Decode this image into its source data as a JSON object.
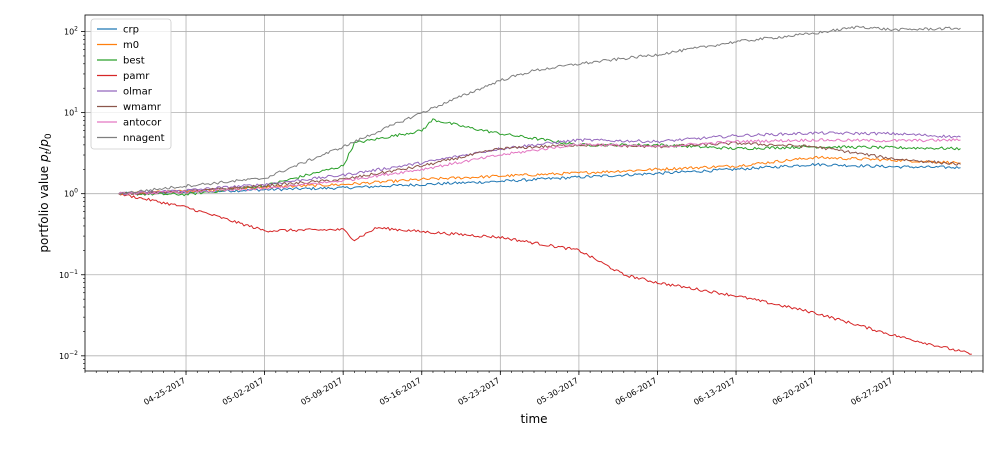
{
  "chart_data": {
    "type": "line",
    "title": "",
    "xlabel": "time",
    "ylabel": "portfolio value p_t/p_0",
    "ylabel_parts": {
      "main": "portfolio value ",
      "p": "p",
      "t": "t",
      "slash": "/",
      "p0": "p",
      "zero": "0"
    },
    "y_scale": "log",
    "ylim": [
      0.0065,
      160
    ],
    "xlim": [
      "2017-04-16",
      "2017-07-05"
    ],
    "grid": true,
    "legend_position": "top-left",
    "x_ticks": [
      {
        "label": "04-25-2017",
        "date": "2017-04-25"
      },
      {
        "label": "05-02-2017",
        "date": "2017-05-02"
      },
      {
        "label": "05-09-2017",
        "date": "2017-05-09"
      },
      {
        "label": "05-16-2017",
        "date": "2017-05-16"
      },
      {
        "label": "05-23-2017",
        "date": "2017-05-23"
      },
      {
        "label": "05-30-2017",
        "date": "2017-05-30"
      },
      {
        "label": "06-06-2017",
        "date": "2017-06-06"
      },
      {
        "label": "06-13-2017",
        "date": "2017-06-13"
      },
      {
        "label": "06-20-2017",
        "date": "2017-06-20"
      },
      {
        "label": "06-27-2017",
        "date": "2017-06-27"
      }
    ],
    "y_ticks": [
      {
        "value": 0.01,
        "base": "10",
        "exp": "−2"
      },
      {
        "value": 0.1,
        "base": "10",
        "exp": "−1"
      },
      {
        "value": 1,
        "base": "10",
        "exp": "0"
      },
      {
        "value": 10,
        "base": "10",
        "exp": "1"
      },
      {
        "value": 100,
        "base": "10",
        "exp": "2"
      }
    ],
    "series": [
      {
        "name": "crp",
        "color": "#1f77b4",
        "points": [
          [
            "2017-04-19",
            1.0
          ],
          [
            "2017-04-25",
            1.05
          ],
          [
            "2017-05-02",
            1.12
          ],
          [
            "2017-05-09",
            1.18
          ],
          [
            "2017-05-16",
            1.3
          ],
          [
            "2017-05-23",
            1.42
          ],
          [
            "2017-05-30",
            1.6
          ],
          [
            "2017-06-06",
            1.78
          ],
          [
            "2017-06-13",
            2.0
          ],
          [
            "2017-06-20",
            2.3
          ],
          [
            "2017-06-27",
            2.15
          ],
          [
            "2017-07-03",
            2.1
          ]
        ]
      },
      {
        "name": "m0",
        "color": "#ff7f0e",
        "points": [
          [
            "2017-04-19",
            1.0
          ],
          [
            "2017-04-25",
            1.08
          ],
          [
            "2017-05-02",
            1.2
          ],
          [
            "2017-05-09",
            1.3
          ],
          [
            "2017-05-16",
            1.5
          ],
          [
            "2017-05-23",
            1.65
          ],
          [
            "2017-05-30",
            1.8
          ],
          [
            "2017-06-06",
            2.0
          ],
          [
            "2017-06-13",
            2.2
          ],
          [
            "2017-06-20",
            2.8
          ],
          [
            "2017-06-27",
            2.6
          ],
          [
            "2017-07-03",
            2.4
          ]
        ]
      },
      {
        "name": "best",
        "color": "#2ca02c",
        "points": [
          [
            "2017-04-19",
            1.0
          ],
          [
            "2017-04-25",
            0.98
          ],
          [
            "2017-05-02",
            1.25
          ],
          [
            "2017-05-09",
            2.2
          ],
          [
            "2017-05-10",
            4.2
          ],
          [
            "2017-05-16",
            6.0
          ],
          [
            "2017-05-17",
            8.2
          ],
          [
            "2017-05-20",
            6.6
          ],
          [
            "2017-05-23",
            5.5
          ],
          [
            "2017-05-30",
            4.0
          ],
          [
            "2017-06-06",
            4.0
          ],
          [
            "2017-06-13",
            3.6
          ],
          [
            "2017-06-20",
            3.8
          ],
          [
            "2017-06-27",
            3.7
          ],
          [
            "2017-07-03",
            3.6
          ]
        ]
      },
      {
        "name": "pamr",
        "color": "#d62728",
        "points": [
          [
            "2017-04-19",
            1.0
          ],
          [
            "2017-04-25",
            0.68
          ],
          [
            "2017-05-02",
            0.35
          ],
          [
            "2017-05-09",
            0.36
          ],
          [
            "2017-05-10",
            0.27
          ],
          [
            "2017-05-12",
            0.38
          ],
          [
            "2017-05-16",
            0.34
          ],
          [
            "2017-05-23",
            0.29
          ],
          [
            "2017-05-30",
            0.2
          ],
          [
            "2017-06-03",
            0.1
          ],
          [
            "2017-06-06",
            0.08
          ],
          [
            "2017-06-13",
            0.055
          ],
          [
            "2017-06-20",
            0.034
          ],
          [
            "2017-06-27",
            0.018
          ],
          [
            "2017-07-04",
            0.0105
          ]
        ]
      },
      {
        "name": "olmar",
        "color": "#9467bd",
        "points": [
          [
            "2017-04-19",
            1.0
          ],
          [
            "2017-04-25",
            1.1
          ],
          [
            "2017-05-02",
            1.3
          ],
          [
            "2017-05-09",
            1.7
          ],
          [
            "2017-05-16",
            2.4
          ],
          [
            "2017-05-23",
            3.6
          ],
          [
            "2017-05-30",
            4.6
          ],
          [
            "2017-06-06",
            4.4
          ],
          [
            "2017-06-13",
            5.2
          ],
          [
            "2017-06-20",
            5.6
          ],
          [
            "2017-06-27",
            5.5
          ],
          [
            "2017-07-03",
            5.0
          ]
        ]
      },
      {
        "name": "wmamr",
        "color": "#8c564b",
        "points": [
          [
            "2017-04-19",
            1.0
          ],
          [
            "2017-04-25",
            1.06
          ],
          [
            "2017-05-02",
            1.25
          ],
          [
            "2017-05-09",
            1.5
          ],
          [
            "2017-05-16",
            2.2
          ],
          [
            "2017-05-23",
            3.6
          ],
          [
            "2017-05-30",
            4.0
          ],
          [
            "2017-06-06",
            3.8
          ],
          [
            "2017-06-13",
            4.2
          ],
          [
            "2017-06-20",
            3.8
          ],
          [
            "2017-06-27",
            2.7
          ],
          [
            "2017-07-03",
            2.3
          ]
        ]
      },
      {
        "name": "antocor",
        "color": "#e377c2",
        "points": [
          [
            "2017-04-19",
            1.0
          ],
          [
            "2017-04-25",
            1.05
          ],
          [
            "2017-05-02",
            1.15
          ],
          [
            "2017-05-09",
            1.45
          ],
          [
            "2017-05-16",
            2.0
          ],
          [
            "2017-05-23",
            3.0
          ],
          [
            "2017-05-30",
            4.1
          ],
          [
            "2017-06-06",
            3.8
          ],
          [
            "2017-06-13",
            4.4
          ],
          [
            "2017-06-20",
            4.6
          ],
          [
            "2017-06-27",
            4.5
          ],
          [
            "2017-07-03",
            4.6
          ]
        ]
      },
      {
        "name": "nnagent",
        "color": "#7f7f7f",
        "points": [
          [
            "2017-04-19",
            1.0
          ],
          [
            "2017-04-25",
            1.25
          ],
          [
            "2017-05-02",
            1.55
          ],
          [
            "2017-05-09",
            3.8
          ],
          [
            "2017-05-16",
            10.0
          ],
          [
            "2017-05-23",
            25.0
          ],
          [
            "2017-05-26",
            33.0
          ],
          [
            "2017-05-30",
            40.0
          ],
          [
            "2017-06-06",
            52.0
          ],
          [
            "2017-06-13",
            75.0
          ],
          [
            "2017-06-20",
            95.0
          ],
          [
            "2017-06-24",
            115.0
          ],
          [
            "2017-06-27",
            105.0
          ],
          [
            "2017-07-03",
            110.0
          ]
        ]
      }
    ]
  }
}
